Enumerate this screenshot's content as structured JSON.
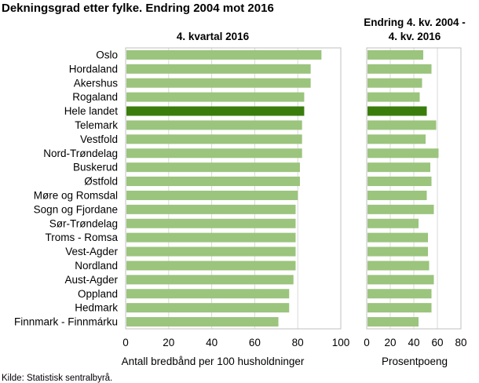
{
  "title": "Dekningsgrad etter fylke. Endring 2004 mot 2016",
  "source": "Kilde: Statistisk sentralbyrå.",
  "colors": {
    "bar": "#9bc47d",
    "highlight": "#3a7d0c",
    "grid": "#d9d9d9",
    "panel_border": "#bfbfbf"
  },
  "chart_data": [
    {
      "type": "bar",
      "orientation": "horizontal",
      "title": "4. kvartal 2016",
      "xlabel": "Antall bredbånd per 100 husholdninger",
      "xlim": [
        0,
        100
      ],
      "xticks": [
        0,
        20,
        40,
        60,
        80,
        100
      ],
      "grid": true,
      "categories": [
        "Oslo",
        "Hordaland",
        "Akershus",
        "Rogaland",
        "Hele landet",
        "Telemark",
        "Vestfold",
        "Nord-Trøndelag",
        "Buskerud",
        "Østfold",
        "Møre og Romsdal",
        "Sogn og Fjordane",
        "Sør-Trøndelag",
        "Troms - Romsa",
        "Vest-Agder",
        "Nordland",
        "Aust-Agder",
        "Oppland",
        "Hedmark",
        "Finnmark - Finnmárku"
      ],
      "values": [
        91,
        86,
        86,
        83,
        83,
        82,
        82,
        82,
        81,
        81,
        80,
        79,
        79,
        79,
        79,
        79,
        78,
        76,
        76,
        71
      ],
      "highlight": "Hele landet"
    },
    {
      "type": "bar",
      "orientation": "horizontal",
      "title": "Endring 4. kv. 2004 - 4. kv. 2016",
      "xlabel": "Prosentpoeng",
      "xlim": [
        0,
        80
      ],
      "xticks": [
        0,
        20,
        40,
        60,
        80
      ],
      "grid": true,
      "categories": [
        "Oslo",
        "Hordaland",
        "Akershus",
        "Rogaland",
        "Hele landet",
        "Telemark",
        "Vestfold",
        "Nord-Trøndelag",
        "Buskerud",
        "Østfold",
        "Møre og Romsdal",
        "Sogn og Fjordane",
        "Sør-Trøndelag",
        "Troms - Romsa",
        "Vest-Agder",
        "Nordland",
        "Aust-Agder",
        "Oppland",
        "Hedmark",
        "Finnmark - Finnmárku"
      ],
      "values": [
        48,
        55,
        47,
        45,
        51,
        59,
        50,
        61,
        54,
        55,
        51,
        57,
        44,
        52,
        52,
        53,
        57,
        55,
        55,
        44
      ],
      "highlight": "Hele landet"
    }
  ]
}
